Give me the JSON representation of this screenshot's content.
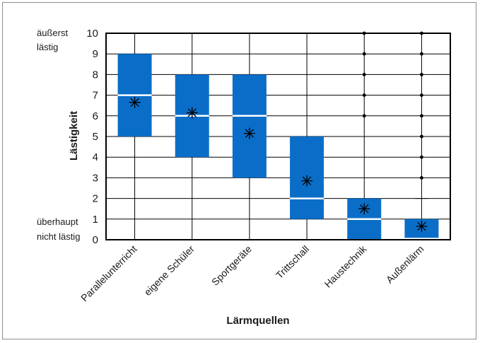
{
  "chart_data": {
    "type": "box",
    "title": "",
    "xlabel": "Lärmquellen",
    "ylabel": "Lästigkeit",
    "ylim": [
      0,
      10
    ],
    "yticks": [
      "0",
      "1",
      "2",
      "3",
      "4",
      "5",
      "6",
      "7",
      "8",
      "9",
      "10"
    ],
    "y_annotations": {
      "top": [
        "äußerst",
        "lästig"
      ],
      "bottom": [
        "überhaupt",
        "nicht lästig"
      ]
    },
    "grid": true,
    "colors": {
      "box": "#0a6ec8",
      "median": "#ffffff",
      "line": "#000000"
    },
    "categories": [
      "Parallelunterricht",
      "eigene Schüler",
      "Sportgeräte",
      "Trittschall",
      "Haustechnik",
      "Außenlärm"
    ],
    "boxes": [
      {
        "category": "Parallelunterricht",
        "q1": 5,
        "median": 7,
        "q3": 9,
        "whisker_low": 5,
        "whisker_high": 9,
        "mean": 6.65,
        "outliers": []
      },
      {
        "category": "eigene Schüler",
        "q1": 4,
        "median": 6,
        "q3": 8,
        "whisker_low": 4,
        "whisker_high": 8,
        "mean": 6.15,
        "outliers": []
      },
      {
        "category": "Sportgeräte",
        "q1": 3,
        "median": 6,
        "q3": 8,
        "whisker_low": 3,
        "whisker_high": 8,
        "mean": 5.15,
        "outliers": []
      },
      {
        "category": "Trittschall",
        "q1": 1,
        "median": 2,
        "q3": 5,
        "whisker_low": 1,
        "whisker_high": 5,
        "mean": 2.85,
        "outliers": []
      },
      {
        "category": "Haustechnik",
        "q1": 0,
        "median": 1,
        "q3": 2,
        "whisker_low": 0,
        "whisker_high": 5,
        "mean": 1.5,
        "outliers": [
          6,
          7,
          8,
          9,
          10
        ]
      },
      {
        "category": "Außenlärm",
        "q1": 0,
        "median": 0,
        "q3": 1,
        "whisker_low": 0,
        "whisker_high": 2,
        "mean": 0.65,
        "outliers": [
          3,
          4,
          5,
          6,
          7,
          8,
          9,
          10
        ]
      }
    ]
  }
}
